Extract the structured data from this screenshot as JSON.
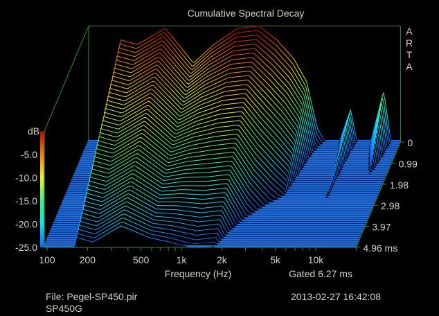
{
  "chart_data": {
    "type": "waterfall",
    "title": "Cumulative Spectral Decay",
    "watermark": "ARTA",
    "xlabel": "Frequency (Hz)",
    "x_scale": "log",
    "x_range_hz": [
      94,
      20000
    ],
    "x_ticks": [
      {
        "value": 100,
        "label": "100"
      },
      {
        "value": 200,
        "label": "200"
      },
      {
        "value": 500,
        "label": "500"
      },
      {
        "value": 1000,
        "label": "1k"
      },
      {
        "value": 2000,
        "label": "2k"
      },
      {
        "value": 5000,
        "label": "5k"
      },
      {
        "value": 10000,
        "label": "10k"
      }
    ],
    "colorbar_label": "dB",
    "y_range_db": [
      -25,
      0
    ],
    "y_ticks": [
      "-5.0",
      "-10.0",
      "-15.0",
      "-20.0",
      "-25.0"
    ],
    "z_ticks": [
      "0",
      "0.99",
      "1.98",
      "2.98",
      "3.97",
      "4.96 ms"
    ],
    "z_range_ms": [
      0,
      4.96
    ],
    "gated_label": "Gated 6.27 ms",
    "colormap": [
      "#1060ff",
      "#10e0f0",
      "#40f080",
      "#f0f020",
      "#f08010",
      "#c00000"
    ],
    "series": {
      "freq_hz": [
        94,
        150,
        165,
        220,
        355,
        575,
        815,
        1230,
        1770,
        2400,
        3200,
        4000,
        4800,
        5500,
        7000,
        8500,
        9500,
        12000,
        15000,
        17000,
        20000
      ],
      "level_t0_db": [
        -25,
        -25,
        -3,
        -4,
        -0.5,
        -8,
        -4,
        -0.5,
        0,
        -3,
        -7,
        -12,
        -22,
        -25,
        -25,
        -18,
        -25,
        -25,
        -14,
        -25,
        -25
      ],
      "decay_db_per_ms": [
        5,
        5,
        4,
        4,
        4,
        3,
        4,
        5,
        5,
        6,
        6,
        5,
        5,
        5,
        5,
        2.5,
        5,
        5,
        7,
        5,
        5
      ]
    }
  },
  "footer": {
    "file": "File: Pegel-SP450.pir",
    "device": "SP450G",
    "datetime": "2013-02-27  16:42:08"
  }
}
